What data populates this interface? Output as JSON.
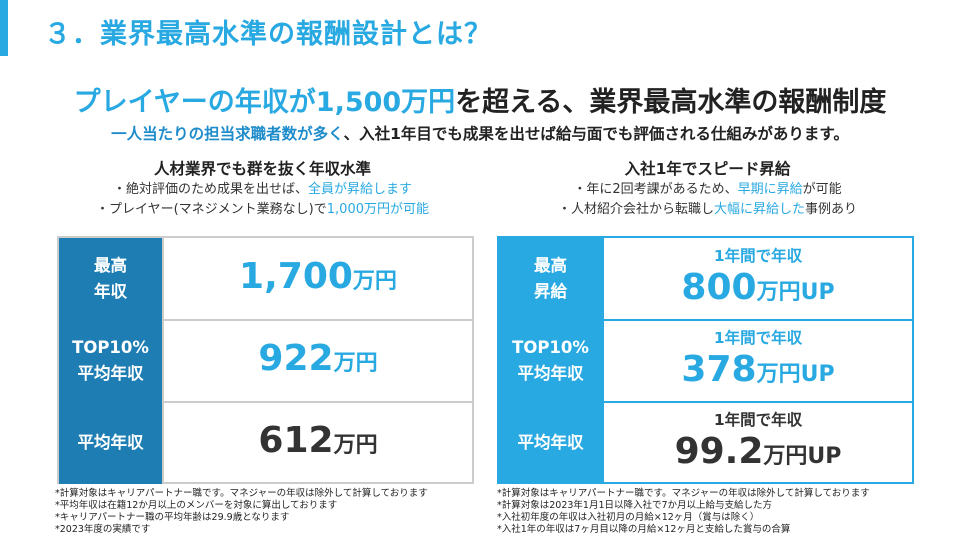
{
  "slide": {
    "title": "３．業界最高水準の報酬設計とは？"
  },
  "headline": {
    "part1": "プレイヤーの年収が1,500万円",
    "part2": "を超える、業界最高水準の報酬制度"
  },
  "subhead": {
    "part1": "一人当たりの担当求職者数が多く",
    "part2": "、入社1年目でも成果を出せば給与面でも評価される仕組みがあります。"
  },
  "left": {
    "title": "人材業界でも群を抜く年収水準",
    "bullet1_a": "・絶対評価のため成果を出せば、",
    "bullet1_b": "全員が昇給します",
    "bullet2_a": "・プレイヤー(マネジメント業務なし)で",
    "bullet2_b": "1,000万円が可能",
    "rows": [
      {
        "label1": "最高",
        "label2": "年収",
        "num": "1,700",
        "unit": "万円"
      },
      {
        "label1": "TOP10%",
        "label2": "平均年収",
        "num": "922",
        "unit": "万円"
      },
      {
        "label1": "平均年収",
        "label2": "",
        "num": "612",
        "unit": "万円"
      }
    ],
    "notes": [
      "*計算対象はキャリアパートナー職です。マネジャーの年収は除外して計算しております",
      "*平均年収は在籍12か月以上のメンバーを対象に算出しております",
      "*キャリアパートナー職の平均年齢は29.9歳となります",
      "*2023年度の実績です"
    ]
  },
  "right": {
    "title": "入社1年でスピード昇給",
    "bullet1_a": "・年に2回考課があるため、",
    "bullet1_b": "早期に昇給",
    "bullet1_c": "が可能",
    "bullet2_a": "・人材紹介会社から転職し",
    "bullet2_b": "大幅に昇給した",
    "bullet2_c": "事例あり",
    "rows": [
      {
        "label1": "最高",
        "label2": "昇給",
        "top": "1年間で年収",
        "num": "800",
        "unit": "万円UP"
      },
      {
        "label1": "TOP10%",
        "label2": "平均年収",
        "top": "1年間で年収",
        "num": "378",
        "unit": "万円UP"
      },
      {
        "label1": "平均年収",
        "label2": "",
        "top": "1年間で年収",
        "num": "99.2",
        "unit": "万円UP"
      }
    ],
    "notes": [
      "*計算対象はキャリアパートナー職です。マネジャーの年収は除外して計算しております",
      "*計算対象は2023年1月1日以降入社で7か月以上給与支給した方",
      "*入社初年度の年収は入社初月の月給×12ヶ月（賞与は除く）",
      "*入社1年の年収は7ヶ月目以降の月給×12ヶ月と支給した賞与の合算"
    ]
  },
  "colors": {
    "accent": "#29a9e1",
    "left_label_bg": "#1e7eb3"
  }
}
